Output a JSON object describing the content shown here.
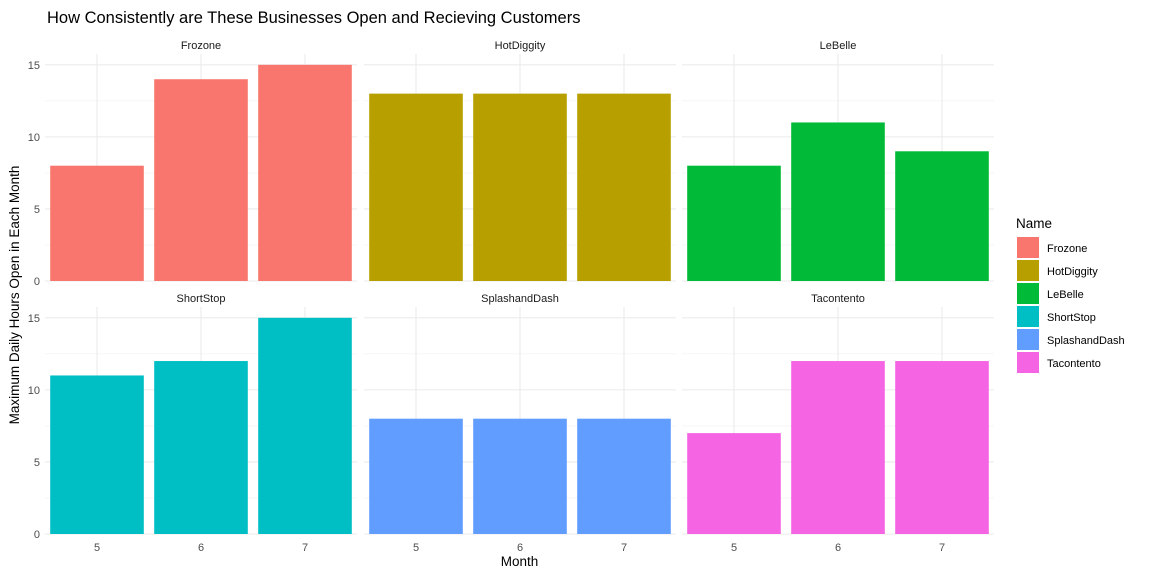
{
  "chart_data": {
    "type": "bar",
    "title": "How Consistently are These Businesses Open and Recieving Customers",
    "xlabel": "Month",
    "ylabel": "Maximum Daily Hours Open in Each Month",
    "ylim": [
      0,
      15.75
    ],
    "yticks": [
      0,
      5,
      10,
      15
    ],
    "categories": [
      "5",
      "6",
      "7"
    ],
    "grid": true,
    "facet_layout": "2 rows x 3 columns",
    "legend": {
      "title": "Name",
      "placement": "right"
    },
    "series": [
      {
        "name": "Frozone",
        "color": "#F8766D",
        "values": [
          8,
          14,
          15
        ]
      },
      {
        "name": "HotDiggity",
        "color": "#B79F00",
        "values": [
          13,
          13,
          13
        ]
      },
      {
        "name": "LeBelle",
        "color": "#00BA38",
        "values": [
          8,
          11,
          9
        ]
      },
      {
        "name": "ShortStop",
        "color": "#00BFC4",
        "values": [
          11,
          12,
          15
        ]
      },
      {
        "name": "SplashandDash",
        "color": "#619CFF",
        "values": [
          8,
          8,
          8
        ]
      },
      {
        "name": "Tacontento",
        "color": "#F564E3",
        "values": [
          7,
          12,
          12
        ]
      }
    ]
  }
}
